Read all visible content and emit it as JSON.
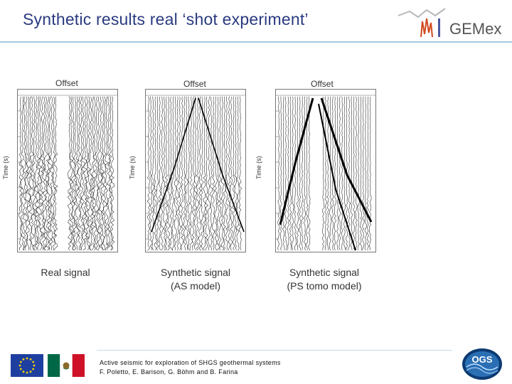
{
  "slide": {
    "title": "Synthetic results real ‘shot experiment’",
    "logo_text": "GEMex",
    "accent_color": "#2a3a80",
    "rule_color": "#a7c7e0"
  },
  "panels": [
    {
      "offset_label": "Offset",
      "time_label": "Time (s)",
      "caption_line1": "Real signal",
      "caption_line2": ""
    },
    {
      "offset_label": "Offset",
      "time_label": "Time (s)",
      "caption_line1": "Synthetic signal",
      "caption_line2": "(AS model)"
    },
    {
      "offset_label": "Offset",
      "time_label": "Time (s)",
      "caption_line1": "Synthetic signal",
      "caption_line2": "(PS tomo model)"
    }
  ],
  "footer": {
    "line1": "Active seismic for exploration of SHGS geothermal systems",
    "line2": "F. Poletto, E. Barison, G. Böhm and B. Farina"
  },
  "ogs_logo_text": "OGS"
}
